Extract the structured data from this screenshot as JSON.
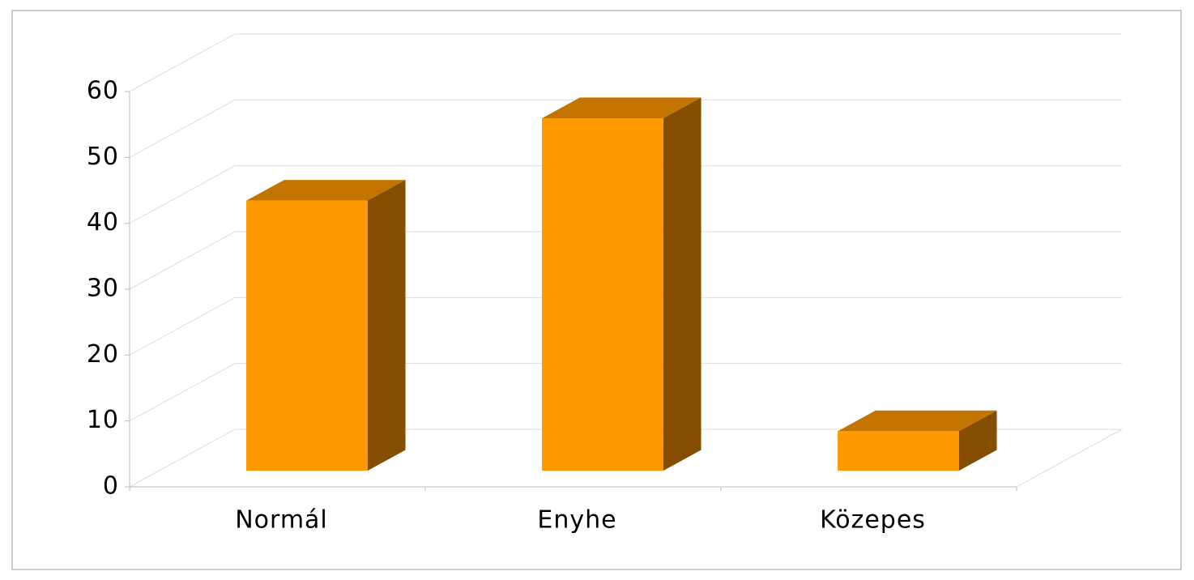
{
  "chart_data": {
    "type": "bar3d",
    "categories": [
      "Normál",
      "Enyhe",
      "Közepes"
    ],
    "values": [
      41,
      53.5,
      6
    ],
    "color": "#ff9900",
    "top_color": "#c47400",
    "side_color": "#844d00",
    "ylim": [
      0,
      60
    ],
    "yticks": [
      0,
      10,
      20,
      30,
      40,
      50,
      60
    ],
    "grid": true
  }
}
